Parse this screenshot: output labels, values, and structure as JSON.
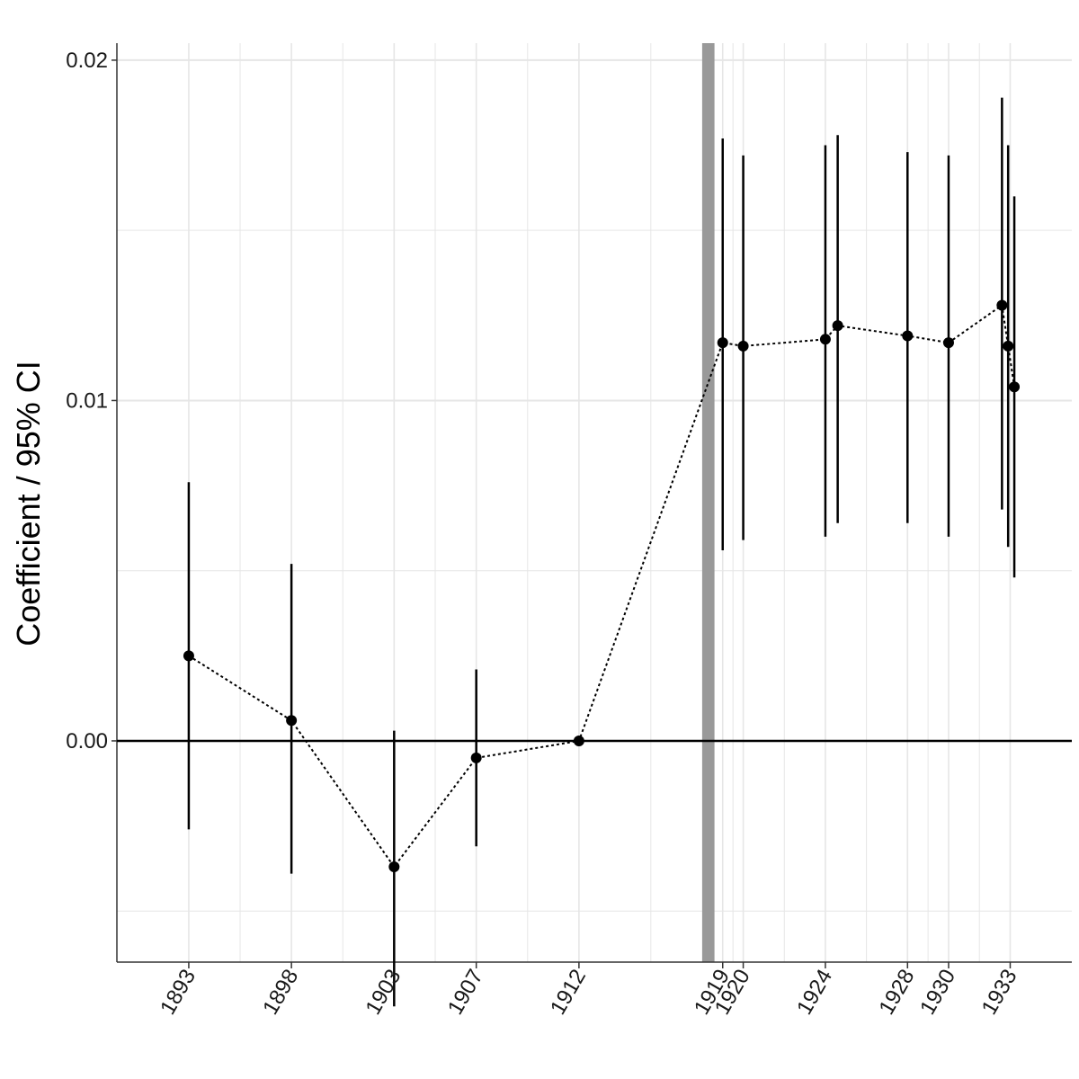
{
  "chart_data": {
    "type": "scatter",
    "title": "",
    "xlabel": "",
    "ylabel": "Coefficient / 95% CI",
    "ylim": [
      -0.0065,
      0.0205
    ],
    "xlim": [
      1889.5,
      1936.0
    ],
    "y_ticks": [
      {
        "value": 0.0,
        "label": "0.00"
      },
      {
        "value": 0.01,
        "label": "0.01"
      },
      {
        "value": 0.02,
        "label": "0.02"
      }
    ],
    "x_ticks": [
      {
        "value": 1893,
        "label": "1893"
      },
      {
        "value": 1898,
        "label": "1898"
      },
      {
        "value": 1903,
        "label": "1903"
      },
      {
        "value": 1907,
        "label": "1907"
      },
      {
        "value": 1912,
        "label": "1912"
      },
      {
        "value": 1919,
        "label": "1919"
      },
      {
        "value": 1920,
        "label": "1920"
      },
      {
        "value": 1924,
        "label": "1924"
      },
      {
        "value": 1928,
        "label": "1928"
      },
      {
        "value": 1930,
        "label": "1930"
      },
      {
        "value": 1933,
        "label": "1933"
      }
    ],
    "reference_line_y": 0,
    "shaded_band": {
      "x_start": 1918.0,
      "x_end": 1918.6,
      "color": "#999999"
    },
    "grid": true,
    "series": [
      {
        "line_style": "dotted",
        "points": [
          {
            "x": 1893,
            "y": 0.0025,
            "ci_low": -0.0026,
            "ci_high": 0.0076
          },
          {
            "x": 1898,
            "y": 0.0006,
            "ci_low": -0.0039,
            "ci_high": 0.0052
          },
          {
            "x": 1903,
            "y": -0.0037,
            "ci_low": -0.0078,
            "ci_high": 0.0003
          },
          {
            "x": 1907,
            "y": -0.0005,
            "ci_low": -0.0031,
            "ci_high": 0.0021
          },
          {
            "x": 1912,
            "y": 0.0,
            "ci_low": 0.0,
            "ci_high": 0.0
          },
          {
            "x": 1919,
            "y": 0.0117,
            "ci_low": 0.0056,
            "ci_high": 0.0177
          },
          {
            "x": 1920,
            "y": 0.0116,
            "ci_low": 0.0059,
            "ci_high": 0.0172
          },
          {
            "x": 1924,
            "y": 0.0118,
            "ci_low": 0.006,
            "ci_high": 0.0175
          },
          {
            "x": 1924.6,
            "y": 0.0122,
            "ci_low": 0.0064,
            "ci_high": 0.0178
          },
          {
            "x": 1928,
            "y": 0.0119,
            "ci_low": 0.0064,
            "ci_high": 0.0173
          },
          {
            "x": 1930,
            "y": 0.0117,
            "ci_low": 0.006,
            "ci_high": 0.0172
          },
          {
            "x": 1932.6,
            "y": 0.0128,
            "ci_low": 0.0068,
            "ci_high": 0.0189
          },
          {
            "x": 1932.9,
            "y": 0.0116,
            "ci_low": 0.0057,
            "ci_high": 0.0175
          },
          {
            "x": 1933.2,
            "y": 0.0104,
            "ci_low": 0.0048,
            "ci_high": 0.016
          }
        ]
      }
    ],
    "colors": {
      "points": "#000000",
      "grid": "#e6e6e6",
      "axis": "#333333"
    }
  }
}
